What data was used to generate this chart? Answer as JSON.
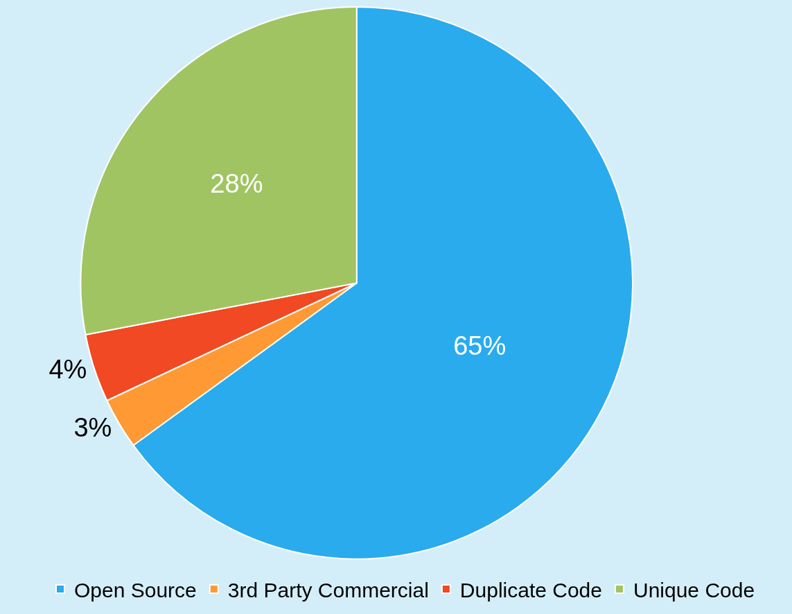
{
  "chart_data": {
    "type": "pie",
    "categories": [
      "Open Source",
      "3rd Party Commercial",
      "Duplicate Code",
      "Unique Code"
    ],
    "values": [
      65,
      3,
      4,
      28
    ],
    "value_labels": [
      "65%",
      "3%",
      "4%",
      "28%"
    ],
    "colors": [
      "#29abee",
      "#ff9933",
      "#f04923",
      "#a1c463"
    ],
    "legend": "bottom"
  }
}
